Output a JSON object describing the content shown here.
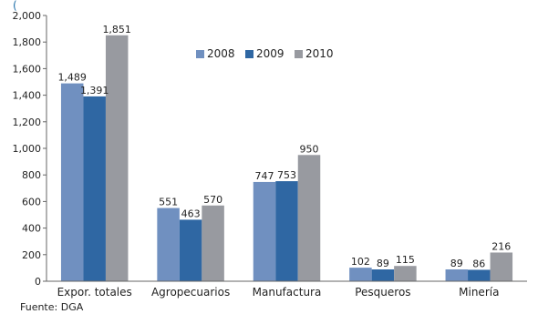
{
  "chart_data": {
    "type": "bar",
    "title": "(",
    "categories": [
      "Expor. totales",
      "Agropecuarios",
      "Manufactura",
      "Pesqueros",
      "Minería"
    ],
    "series": [
      {
        "name": "2008",
        "color": "#7090c0",
        "values": [
          1489,
          551,
          747,
          102,
          89
        ]
      },
      {
        "name": "2009",
        "color": "#2f67a3",
        "values": [
          1391,
          463,
          753,
          89,
          86
        ]
      },
      {
        "name": "2010",
        "color": "#989aa0",
        "values": [
          1851,
          570,
          950,
          115,
          216
        ]
      }
    ],
    "data_labels": [
      [
        "1,489",
        "551",
        "747",
        "102",
        "89"
      ],
      [
        "1,391",
        "463",
        "753",
        "89",
        "86"
      ],
      [
        "1,851",
        "570",
        "950",
        "115",
        "216"
      ]
    ],
    "ylim": [
      0,
      2000
    ],
    "yticks": [
      0,
      200,
      400,
      600,
      800,
      1000,
      1200,
      1400,
      1600,
      1800,
      2000
    ],
    "ytick_labels": [
      "0",
      "200",
      "400",
      "600",
      "800",
      "1,000",
      "1,200",
      "1,400",
      "1,600",
      "1,800",
      "2,000"
    ],
    "xlabel": "",
    "ylabel": "",
    "grid": false,
    "legend_position": "top-center",
    "source": "Fuente: DGA"
  }
}
